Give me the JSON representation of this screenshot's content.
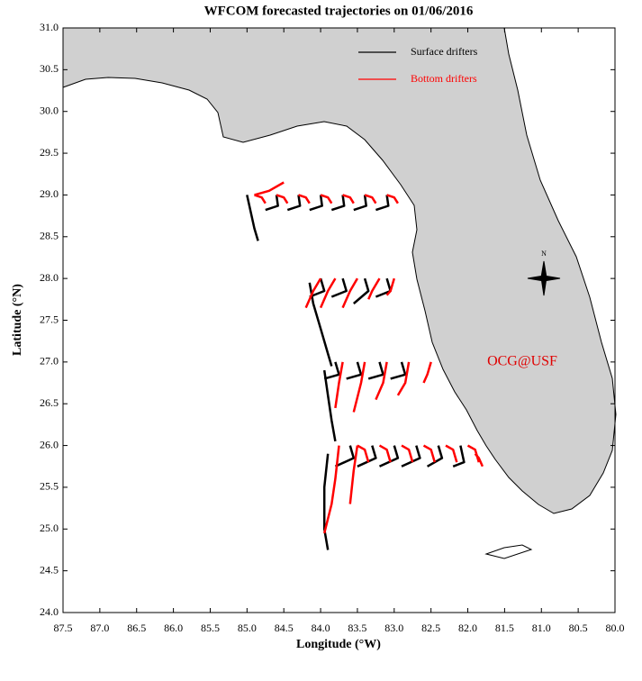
{
  "chart_data": {
    "type": "trajectory_map",
    "title": "WFCOM forecasted trajectories on 01/06/2016",
    "x_label": "Longitude (°W)",
    "y_label": "Latitude (°N)",
    "xlim": [
      87.5,
      80.0
    ],
    "ylim": [
      24.0,
      31.0
    ],
    "xticks": [
      87.5,
      {
        "value": 87,
        "label": "87.0"
      },
      86.5,
      {
        "value": 86,
        "label": "86.0"
      },
      85.5,
      {
        "value": 85,
        "label": "85.0"
      },
      84.5,
      {
        "value": 84,
        "label": "84.0"
      },
      83.5,
      {
        "value": 83,
        "label": "83.0"
      },
      82.5,
      {
        "value": 82,
        "label": "82.0"
      },
      81.5,
      {
        "value": 81,
        "label": "81.0"
      },
      80.5,
      {
        "value": 80,
        "label": "80.0"
      }
    ],
    "yticks": [
      {
        "value": 24,
        "label": "24.0"
      },
      24.5,
      {
        "value": 25,
        "label": "25.0"
      },
      25.5,
      {
        "value": 26,
        "label": "26.0"
      },
      26.5,
      {
        "value": 27,
        "label": "27.0"
      },
      27.5,
      {
        "value": 28,
        "label": "28.0"
      },
      28.5,
      {
        "value": 29,
        "label": "29.0"
      },
      29.5,
      {
        "value": 30,
        "label": "30.0"
      },
      30.5,
      {
        "value": 31,
        "label": "31.0"
      }
    ],
    "annotations": [
      "OCG@USF",
      "N"
    ],
    "series": [
      {
        "name": "Surface drifters",
        "color": "#000000",
        "tracks": [
          {
            "x": [
              85.0,
              84.95,
              84.9,
              84.85
            ],
            "y": [
              29.0,
              28.8,
              28.6,
              28.45
            ]
          },
          {
            "x": [
              84.6,
              84.58,
              84.75
            ],
            "y": [
              29.0,
              28.87,
              28.82
            ]
          },
          {
            "x": [
              84.3,
              84.28,
              84.45
            ],
            "y": [
              29.0,
              28.87,
              28.82
            ]
          },
          {
            "x": [
              84.0,
              83.98,
              84.15
            ],
            "y": [
              29.0,
              28.87,
              28.82
            ]
          },
          {
            "x": [
              83.7,
              83.68,
              83.85
            ],
            "y": [
              29.0,
              28.87,
              28.82
            ]
          },
          {
            "x": [
              83.4,
              83.38,
              83.55
            ],
            "y": [
              29.0,
              28.87,
              28.82
            ]
          },
          {
            "x": [
              83.1,
              83.08,
              83.25
            ],
            "y": [
              29.0,
              28.87,
              28.82
            ]
          },
          {
            "x": [
              84.15,
              84.1,
              84.0,
              83.9,
              83.85
            ],
            "y": [
              27.95,
              27.7,
              27.4,
              27.1,
              26.95
            ]
          },
          {
            "x": [
              84.0,
              83.95,
              84.15
            ],
            "y": [
              28.0,
              27.85,
              27.78
            ]
          },
          {
            "x": [
              83.7,
              83.65,
              83.85
            ],
            "y": [
              28.0,
              27.85,
              27.78
            ]
          },
          {
            "x": [
              83.4,
              83.35,
              83.55
            ],
            "y": [
              28.0,
              27.85,
              27.7
            ]
          },
          {
            "x": [
              83.1,
              83.05,
              83.25
            ],
            "y": [
              28.0,
              27.85,
              27.78
            ]
          },
          {
            "x": [
              83.95,
              83.9,
              83.85,
              83.8
            ],
            "y": [
              26.9,
              26.6,
              26.3,
              26.05
            ]
          },
          {
            "x": [
              83.8,
              83.75,
              83.95
            ],
            "y": [
              27.0,
              26.85,
              26.8
            ]
          },
          {
            "x": [
              83.5,
              83.45,
              83.65
            ],
            "y": [
              27.0,
              26.85,
              26.8
            ]
          },
          {
            "x": [
              83.2,
              83.15,
              83.35
            ],
            "y": [
              27.0,
              26.85,
              26.8
            ]
          },
          {
            "x": [
              82.9,
              82.85,
              83.05
            ],
            "y": [
              27.0,
              26.85,
              26.8
            ]
          },
          {
            "x": [
              83.9,
              83.95,
              83.95,
              83.9
            ],
            "y": [
              25.9,
              25.5,
              25.0,
              24.75
            ]
          },
          {
            "x": [
              83.6,
              83.55,
              83.8
            ],
            "y": [
              26.0,
              25.85,
              25.75
            ]
          },
          {
            "x": [
              83.3,
              83.25,
              83.5
            ],
            "y": [
              26.0,
              25.85,
              25.75
            ]
          },
          {
            "x": [
              83.0,
              82.95,
              83.2
            ],
            "y": [
              26.0,
              25.85,
              25.75
            ]
          },
          {
            "x": [
              82.7,
              82.65,
              82.9
            ],
            "y": [
              26.0,
              25.85,
              25.75
            ]
          },
          {
            "x": [
              82.4,
              82.35,
              82.55
            ],
            "y": [
              26.0,
              25.85,
              25.75
            ]
          },
          {
            "x": [
              82.1,
              82.05,
              82.2
            ],
            "y": [
              26.0,
              25.8,
              25.75
            ]
          }
        ]
      },
      {
        "name": "Bottom drifters",
        "color": "#ff0000",
        "tracks": [
          {
            "x": [
              84.9,
              84.7,
              84.5
            ],
            "y": [
              29.0,
              29.05,
              29.15
            ]
          },
          {
            "x": [
              84.9,
              84.8,
              84.75
            ],
            "y": [
              29.0,
              28.97,
              28.9
            ]
          },
          {
            "x": [
              84.6,
              84.5,
              84.45
            ],
            "y": [
              29.0,
              28.97,
              28.9
            ]
          },
          {
            "x": [
              84.3,
              84.2,
              84.15
            ],
            "y": [
              29.0,
              28.97,
              28.9
            ]
          },
          {
            "x": [
              84.0,
              83.9,
              83.85
            ],
            "y": [
              29.0,
              28.97,
              28.9
            ]
          },
          {
            "x": [
              83.7,
              83.6,
              83.55
            ],
            "y": [
              29.0,
              28.97,
              28.9
            ]
          },
          {
            "x": [
              83.4,
              83.3,
              83.25
            ],
            "y": [
              29.0,
              28.97,
              28.9
            ]
          },
          {
            "x": [
              83.1,
              83.0,
              82.95
            ],
            "y": [
              29.0,
              28.97,
              28.9
            ]
          },
          {
            "x": [
              84.0,
              84.1,
              84.2
            ],
            "y": [
              28.0,
              27.85,
              27.65
            ]
          },
          {
            "x": [
              83.8,
              83.9,
              84.0
            ],
            "y": [
              28.0,
              27.85,
              27.65
            ]
          },
          {
            "x": [
              83.5,
              83.6,
              83.7
            ],
            "y": [
              28.0,
              27.85,
              27.65
            ]
          },
          {
            "x": [
              83.2,
              83.3,
              83.35
            ],
            "y": [
              28.0,
              27.85,
              27.75
            ]
          },
          {
            "x": [
              83.0,
              83.05,
              83.1
            ],
            "y": [
              28.0,
              27.85,
              27.8
            ]
          },
          {
            "x": [
              83.7,
              83.75,
              83.8
            ],
            "y": [
              27.0,
              26.75,
              26.45
            ]
          },
          {
            "x": [
              83.4,
              83.45,
              83.55
            ],
            "y": [
              27.0,
              26.75,
              26.4
            ]
          },
          {
            "x": [
              83.1,
              83.15,
              83.25
            ],
            "y": [
              27.0,
              26.75,
              26.55
            ]
          },
          {
            "x": [
              82.8,
              82.85,
              82.95
            ],
            "y": [
              27.0,
              26.75,
              26.6
            ]
          },
          {
            "x": [
              82.5,
              82.55,
              82.6
            ],
            "y": [
              27.0,
              26.85,
              26.75
            ]
          },
          {
            "x": [
              83.75,
              83.8,
              83.85,
              83.95
            ],
            "y": [
              26.0,
              25.6,
              25.3,
              24.95
            ]
          },
          {
            "x": [
              83.5,
              83.55,
              83.6
            ],
            "y": [
              26.0,
              25.7,
              25.3
            ]
          },
          {
            "x": [
              83.5,
              83.4,
              83.35
            ],
            "y": [
              26.0,
              25.95,
              25.8
            ]
          },
          {
            "x": [
              83.2,
              83.1,
              83.05
            ],
            "y": [
              26.0,
              25.95,
              25.8
            ]
          },
          {
            "x": [
              82.9,
              82.8,
              82.75
            ],
            "y": [
              26.0,
              25.95,
              25.8
            ]
          },
          {
            "x": [
              82.6,
              82.5,
              82.45
            ],
            "y": [
              26.0,
              25.95,
              25.8
            ]
          },
          {
            "x": [
              82.3,
              82.2,
              82.15
            ],
            "y": [
              26.0,
              25.95,
              25.8
            ]
          },
          {
            "x": [
              82.0,
              81.9,
              81.85
            ],
            "y": [
              26.0,
              25.95,
              25.8
            ]
          },
          {
            "x": [
              81.9,
              81.85,
              81.8
            ],
            "y": [
              25.9,
              25.85,
              25.75
            ]
          }
        ]
      }
    ]
  }
}
